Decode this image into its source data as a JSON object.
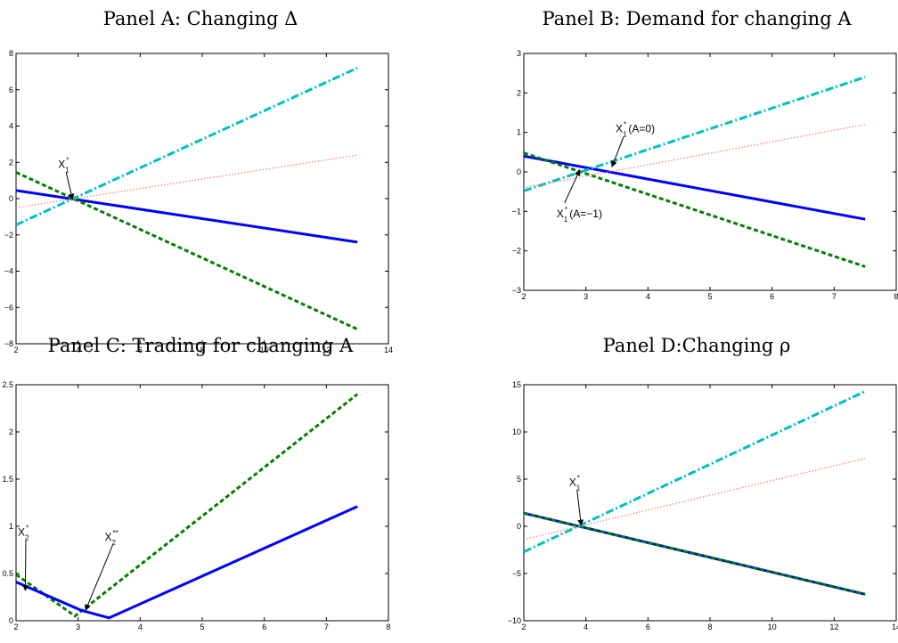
{
  "colors": {
    "blue": "#0000ff",
    "green": "#007f00",
    "cyan": "#00bfbf",
    "red": "#ff8080"
  },
  "chart_data": [
    {
      "id": "A",
      "type": "line",
      "title": "Panel A: Changing Δ",
      "xlim": [
        2,
        14
      ],
      "ylim": [
        -8,
        8
      ],
      "xticks": [
        2,
        4,
        6,
        8,
        10,
        12,
        14
      ],
      "yticks": [
        -8,
        -6,
        -4,
        -2,
        0,
        2,
        4,
        6,
        8
      ],
      "series": [
        {
          "style": "solid",
          "color": "blue",
          "x": [
            2,
            13
          ],
          "y": [
            0.45,
            -2.4
          ]
        },
        {
          "style": "dashed",
          "color": "green",
          "x": [
            2,
            13
          ],
          "y": [
            1.45,
            -7.2
          ]
        },
        {
          "style": "dashdot",
          "color": "cyan",
          "x": [
            2,
            13
          ],
          "y": [
            -1.45,
            7.2
          ]
        },
        {
          "style": "dotted",
          "color": "red",
          "x": [
            2,
            13
          ],
          "y": [
            -0.5,
            2.4
          ]
        }
      ],
      "annotations": [
        {
          "base": "X",
          "sup": "*",
          "sub": "1",
          "tip": [
            3.82,
            -0.05
          ],
          "text_at": [
            3.5,
            1.7
          ]
        }
      ]
    },
    {
      "id": "B",
      "type": "line",
      "title": "Panel B: Demand for changing A",
      "xlim": [
        2,
        8
      ],
      "ylim": [
        -3,
        3
      ],
      "xticks": [
        2,
        3,
        4,
        5,
        6,
        7,
        8
      ],
      "yticks": [
        -3,
        -2,
        -1,
        0,
        1,
        2,
        3
      ],
      "series": [
        {
          "style": "solid",
          "color": "blue",
          "x": [
            2,
            7.5
          ],
          "y": [
            0.4,
            -1.2
          ]
        },
        {
          "style": "dashed",
          "color": "green",
          "x": [
            2,
            7.5
          ],
          "y": [
            0.48,
            -2.4
          ]
        },
        {
          "style": "dashdot",
          "color": "cyan",
          "x": [
            2,
            7.5
          ],
          "y": [
            -0.48,
            2.4
          ]
        },
        {
          "style": "dotted",
          "color": "red",
          "x": [
            2,
            7.5
          ],
          "y": [
            -0.4,
            1.2
          ]
        }
      ],
      "annotations": [
        {
          "base": "X",
          "sup": "*",
          "sub": "1",
          "suffix": "(A=0)",
          "tip": [
            3.42,
            0.13
          ],
          "text_at": [
            3.55,
            1.0
          ]
        },
        {
          "base": "X",
          "sup": "*",
          "sub": "1",
          "suffix": "(A=−1)",
          "tip": [
            2.9,
            0.05
          ],
          "text_at": [
            2.6,
            -1.15
          ]
        }
      ]
    },
    {
      "id": "C",
      "type": "line",
      "title": "Panel C: Trading for changing A",
      "xlim": [
        2,
        8
      ],
      "ylim": [
        0,
        2.5
      ],
      "xticks": [
        2,
        3,
        4,
        5,
        6,
        7,
        8
      ],
      "yticks": [
        0,
        0.5,
        1,
        1.5,
        2,
        2.5
      ],
      "ytick_labels": [
        "0",
        "0.5",
        "1",
        "1.5",
        "2",
        "2.5"
      ],
      "series": [
        {
          "style": "dashed",
          "color": "green",
          "x": [
            2,
            2.95,
            7.5
          ],
          "y": [
            0.49,
            0.05,
            2.4
          ]
        },
        {
          "style": "solid",
          "color": "blue",
          "x": [
            2,
            3.05,
            3.5,
            7.5
          ],
          "y": [
            0.41,
            0.11,
            0.03,
            1.21
          ]
        }
      ],
      "annotations": [
        {
          "base": "X",
          "sup": "*",
          "sub": "2",
          "tip": [
            2.15,
            0.32
          ],
          "text_at": [
            2.1,
            0.9
          ]
        },
        {
          "base": "X",
          "sup": "**",
          "sub": "2",
          "tip": [
            3.12,
            0.11
          ],
          "text_at": [
            3.5,
            0.85
          ]
        }
      ]
    },
    {
      "id": "D",
      "type": "line",
      "title": "Panel D:Changing ρ",
      "xlim": [
        2,
        14
      ],
      "ylim": [
        -10,
        15
      ],
      "xticks": [
        2,
        4,
        6,
        8,
        10,
        12,
        14
      ],
      "yticks": [
        -10,
        -5,
        0,
        5,
        10,
        15
      ],
      "series": [
        {
          "style": "solid",
          "color": "blue",
          "x": [
            2,
            13
          ],
          "y": [
            1.4,
            -7.2
          ]
        },
        {
          "style": "dashed",
          "color": "green",
          "x": [
            2,
            13
          ],
          "y": [
            1.4,
            -7.2
          ]
        },
        {
          "style": "dashdot",
          "color": "cyan",
          "x": [
            2,
            13
          ],
          "y": [
            -2.7,
            14.3
          ]
        },
        {
          "style": "dotted",
          "color": "red",
          "x": [
            2,
            13
          ],
          "y": [
            -1.4,
            7.2
          ]
        }
      ],
      "annotations": [
        {
          "base": "X",
          "sup": "*",
          "sub": "1",
          "tip": [
            3.85,
            0.1
          ],
          "text_at": [
            3.6,
            4.3
          ]
        }
      ]
    }
  ]
}
